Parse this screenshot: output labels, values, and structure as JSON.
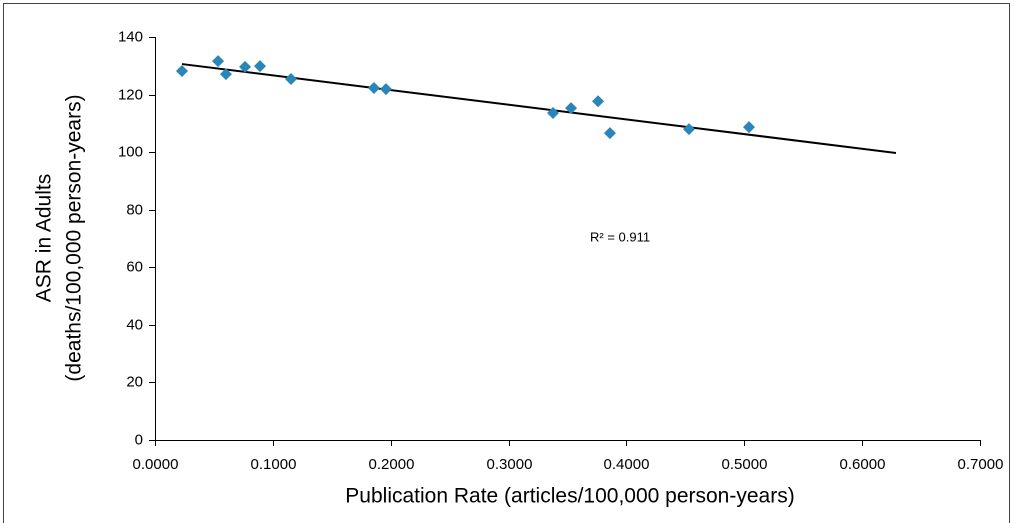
{
  "chart_data": {
    "type": "scatter",
    "x_label": "Publication Rate (articles/100,000 person-years)",
    "y_label": [
      "ASR in Adults",
      "(deaths/100,000  person-years)"
    ],
    "annotation": "R² = 0.911",
    "series": [
      {
        "color": "#2a86b8",
        "x": [
          0.0229,
          0.0535,
          0.0602,
          0.0764,
          0.0891,
          0.1154,
          0.1858,
          0.196,
          0.3377,
          0.353,
          0.3759,
          0.386,
          0.4531,
          0.504
        ],
        "values": [
          128.2,
          131.6,
          127.1,
          129.6,
          129.9,
          125.4,
          122.3,
          121.9,
          113.6,
          115.3,
          117.7,
          106.6,
          108.0,
          108.7
        ]
      }
    ],
    "trendline": {
      "color": "#000000",
      "x": [
        0.0229,
        0.6287
      ],
      "y": [
        130.6,
        99.7
      ]
    },
    "xlim": [
      0,
      0.7
    ],
    "ylim": [
      0,
      140
    ],
    "xticks": [
      {
        "value": 0,
        "label": "0.0000"
      },
      {
        "value": 0.1,
        "label": "0.1000"
      },
      {
        "value": 0.2,
        "label": "0.2000"
      },
      {
        "value": 0.3,
        "label": "0.3000"
      },
      {
        "value": 0.4,
        "label": "0.4000"
      },
      {
        "value": 0.5,
        "label": "0.5000"
      },
      {
        "value": 0.6,
        "label": "0.6000"
      },
      {
        "value": 0.7,
        "label": "0.7000"
      }
    ],
    "yticks": [
      0,
      20,
      40,
      60,
      80,
      100,
      120,
      140
    ],
    "grid": false
  }
}
